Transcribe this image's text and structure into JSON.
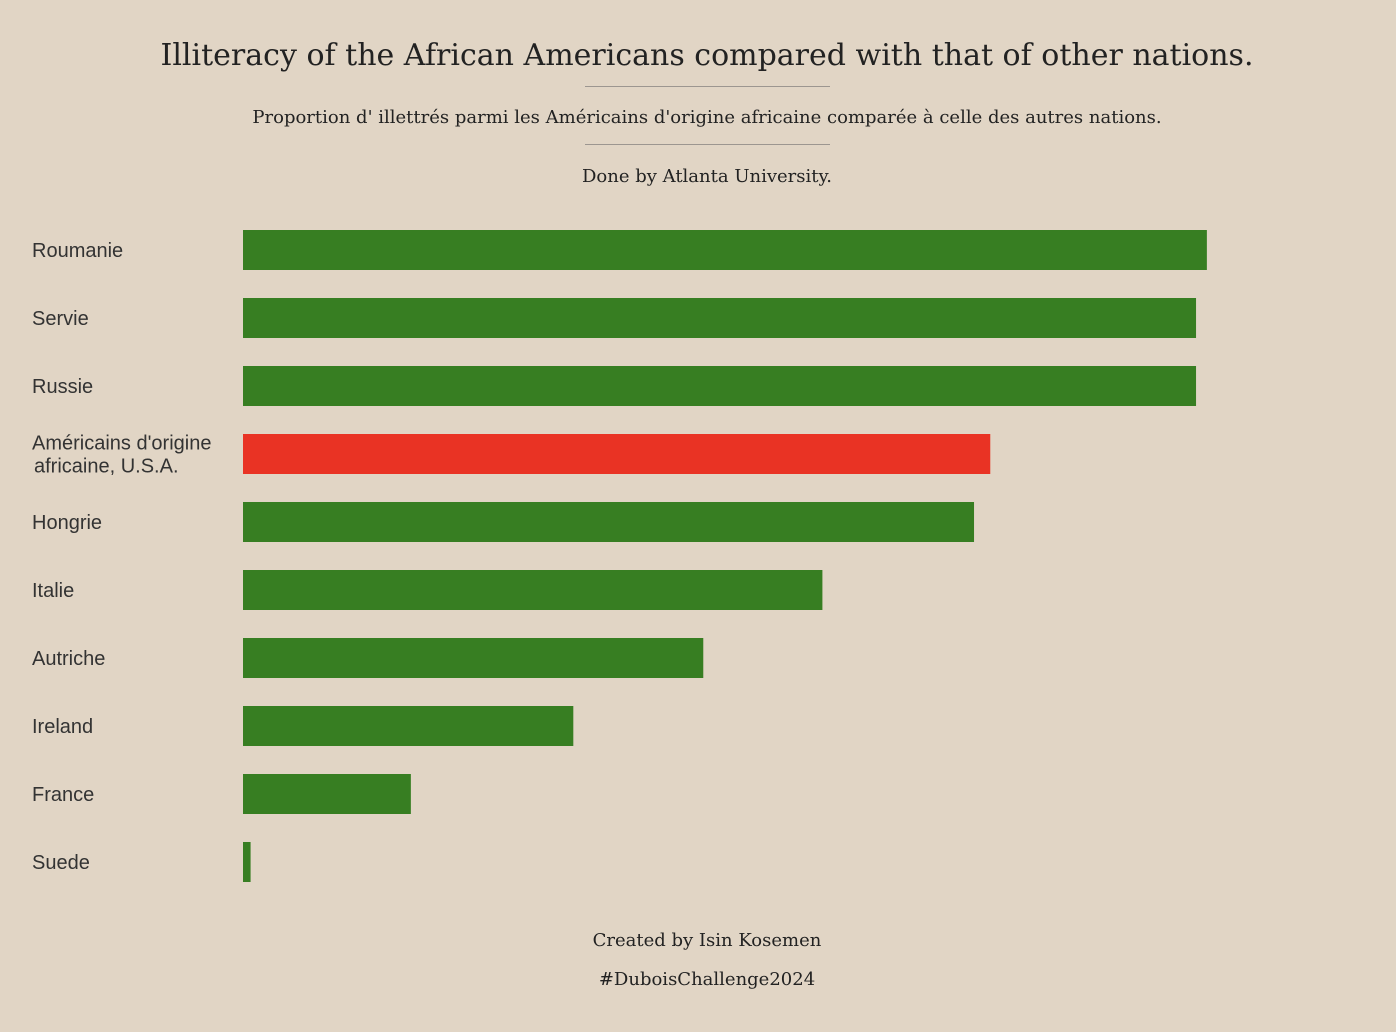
{
  "header": {
    "title": "Illiteracy of the African Americans compared with that of other nations.",
    "subtitle": "Proportion d' illettrés parmi les Américains d'origine africaine comparée à celle des autres nations.",
    "credit": "Done by Atlanta University."
  },
  "footer": {
    "author": "Created by Isin Kosemen",
    "hashtag": "#DuboisChallenge2024"
  },
  "colors": {
    "background": "#e1d5c5",
    "bar_default": "#377e22",
    "bar_highlight": "#e93324"
  },
  "chart_data": {
    "type": "bar",
    "orientation": "horizontal",
    "title": "Illiteracy of the African Americans compared with that of other nations.",
    "categories": [
      "Roumanie",
      "Servie",
      "Russie",
      "Américains d'origine africaine, U.S.A.",
      "Hongrie",
      "Italie",
      "Autriche",
      "Ireland",
      "France",
      "Suede"
    ],
    "category_label_lines": [
      [
        "Roumanie"
      ],
      [
        "Servie"
      ],
      [
        "Russie"
      ],
      [
        "Américains d'origine",
        "africaine, U.S.A."
      ],
      [
        "Hongrie"
      ],
      [
        "Italie"
      ],
      [
        "Autriche"
      ],
      [
        "Ireland"
      ],
      [
        "France"
      ],
      [
        "Suede"
      ]
    ],
    "values": [
      89,
      88,
      88,
      69,
      67.5,
      53.5,
      42.5,
      30.5,
      15.5,
      0.7
    ],
    "highlight_index": 3,
    "xlim": [
      0,
      100
    ],
    "axes_visible": false,
    "grid": false
  }
}
